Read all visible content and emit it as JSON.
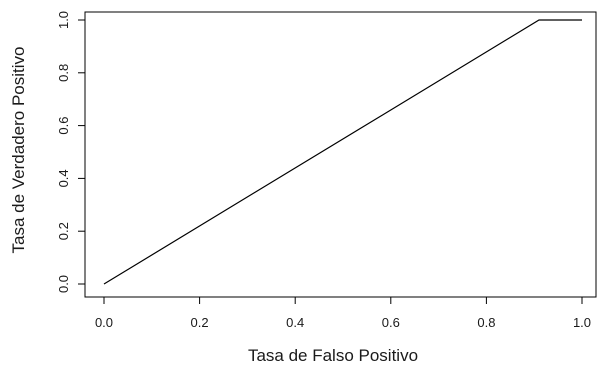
{
  "chart_data": {
    "type": "line",
    "title": "",
    "xlabel": "Tasa de Falso Positivo",
    "ylabel": "Tasa de Verdadero Positivo",
    "xlim": [
      0.0,
      1.0
    ],
    "ylim": [
      0.0,
      1.0
    ],
    "x_ticks": [
      "0.0",
      "0.2",
      "0.4",
      "0.6",
      "0.8",
      "1.0"
    ],
    "y_ticks": [
      "0.0",
      "0.2",
      "0.4",
      "0.6",
      "0.8",
      "1.0"
    ],
    "grid": false,
    "legend": "none",
    "series": [
      {
        "x": [
          0.0,
          0.91,
          1.0
        ],
        "y": [
          0.0,
          1.0,
          1.0
        ],
        "color": "#000000"
      }
    ]
  }
}
